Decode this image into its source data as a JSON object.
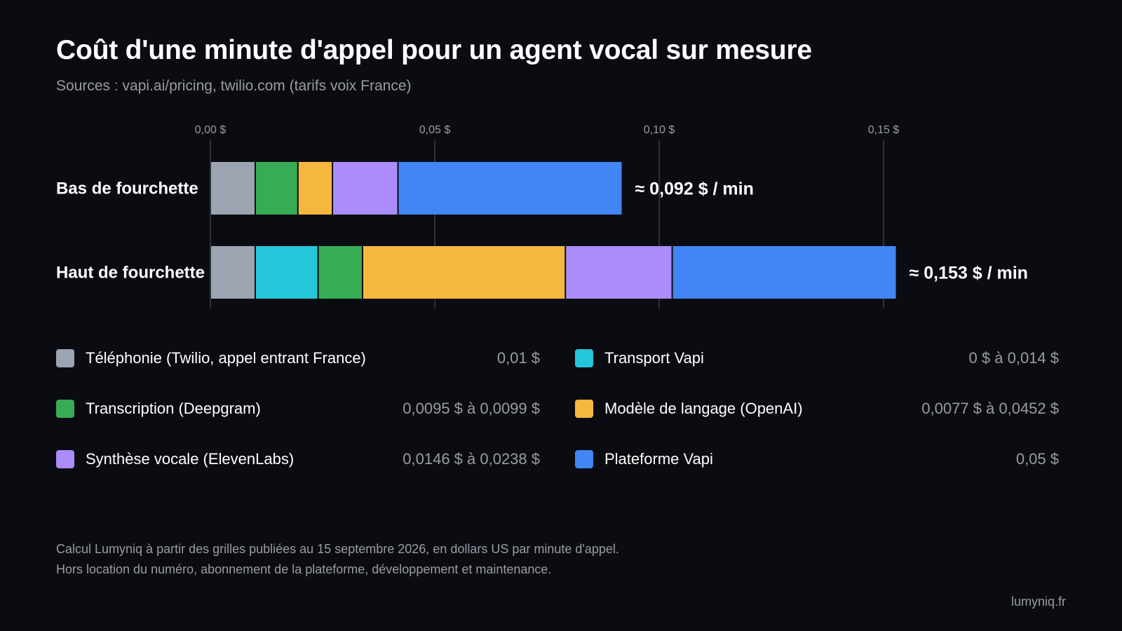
{
  "colors": {
    "background": "#0b0c12",
    "text": "#ffffff",
    "muted": "#9a9ca4",
    "grid": "#3a3c44"
  },
  "chart_data": {
    "type": "bar",
    "orientation": "horizontal",
    "stacked": true,
    "title": "Coût d'une minute d'appel pour un agent vocal sur mesure",
    "subtitle": "Sources : vapi.ai/pricing, twilio.com (tarifs voix France)",
    "xlim": [
      0,
      0.15
    ],
    "x_ticks": [
      0,
      0.05,
      0.1,
      0.15
    ],
    "x_tick_labels": [
      "0,00 $",
      "0,05 $",
      "0,10 $",
      "0,15 $"
    ],
    "grid": true,
    "categories": [
      "Bas de fourchette",
      "Haut de fourchette"
    ],
    "totals_labels": [
      "≈ 0,092 $ / min",
      "≈ 0,153 $ / min"
    ],
    "series": [
      {
        "name": "Téléphonie (Twilio, appel entrant France)",
        "color": "#9ba4b0",
        "values": [
          0.01,
          0.01
        ],
        "range_label": "0,01 $"
      },
      {
        "name": "Transport Vapi",
        "color": "#26c6da",
        "values": [
          0,
          0.014
        ],
        "range_label": "0 $ à 0,014 $"
      },
      {
        "name": "Transcription (Deepgram)",
        "color": "#37ac55",
        "values": [
          0.0095,
          0.0099
        ],
        "range_label": "0,0095 $ à 0,0099 $"
      },
      {
        "name": "Modèle de langage (OpenAI)",
        "color": "#f5b73d",
        "values": [
          0.0077,
          0.0452
        ],
        "range_label": "0,0077 $ à 0,0452 $"
      },
      {
        "name": "Synthèse vocale (ElevenLabs)",
        "color": "#ab8cfa",
        "values": [
          0.0146,
          0.0238
        ],
        "range_label": "0,0146 $ à 0,0238 $"
      },
      {
        "name": "Plateforme Vapi",
        "color": "#4285f4",
        "values": [
          0.05,
          0.05
        ],
        "range_label": "0,05 $"
      }
    ]
  },
  "footnotes": [
    "Calcul Lumyniq à partir des grilles publiées au 15 septembre 2026, en dollars US par minute d'appel.",
    "Hors location du numéro, abonnement de la plateforme, développement et maintenance."
  ],
  "brand": "lumyniq.fr"
}
